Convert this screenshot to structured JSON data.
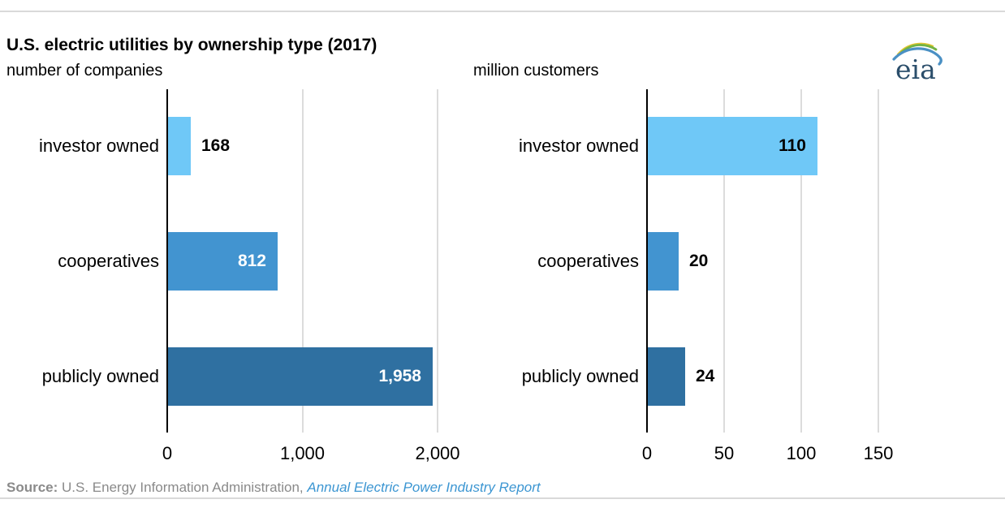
{
  "page": {
    "title": "U.S. electric utilities by ownership type (2017)"
  },
  "logo": {
    "text": "eia"
  },
  "source": {
    "label": "Source:",
    "text": " U.S. Energy Information Administration, ",
    "link": "Annual Electric Power Industry Report"
  },
  "colors": {
    "light_blue": "#6FC8F7",
    "medium_blue": "#4294D0",
    "dark_blue": "#2F70A1",
    "grid": "#DCDCDC",
    "axis": "#000000",
    "source_gray": "#8A8A8A",
    "link_blue": "#3C96D2",
    "divider_gray": "#D9D9D9"
  },
  "chart_data": [
    {
      "type": "bar",
      "orientation": "horizontal",
      "title": "number of companies",
      "categories": [
        "investor owned",
        "cooperatives",
        "publicly owned"
      ],
      "values": [
        168,
        812,
        1958
      ],
      "value_labels": [
        "168",
        "812",
        "1,958"
      ],
      "bar_colors": [
        "#6FC8F7",
        "#4294D0",
        "#2F70A1"
      ],
      "value_label_placement": [
        "outside",
        "inside",
        "inside"
      ],
      "value_label_colors": [
        "#000000",
        "#ffffff",
        "#ffffff"
      ],
      "xlim": [
        0,
        2400
      ],
      "xticks": [
        0,
        1000,
        2000
      ],
      "xtick_labels": [
        "0",
        "1,000",
        "2,000"
      ],
      "grid": "vertical",
      "legend": "none"
    },
    {
      "type": "bar",
      "orientation": "horizontal",
      "title": "million customers",
      "categories": [
        "investor owned",
        "cooperatives",
        "publicly owned"
      ],
      "values": [
        110,
        20,
        24
      ],
      "value_labels": [
        "110",
        "20",
        "24"
      ],
      "bar_colors": [
        "#6FC8F7",
        "#4294D0",
        "#2F70A1"
      ],
      "value_label_placement": [
        "inside",
        "outside",
        "outside"
      ],
      "value_label_colors": [
        "#000000",
        "#000000",
        "#000000"
      ],
      "xlim": [
        0,
        230
      ],
      "xticks": [
        0,
        50,
        100,
        150
      ],
      "xtick_labels": [
        "0",
        "50",
        "100",
        "150"
      ],
      "grid": "vertical",
      "legend": "none"
    }
  ]
}
